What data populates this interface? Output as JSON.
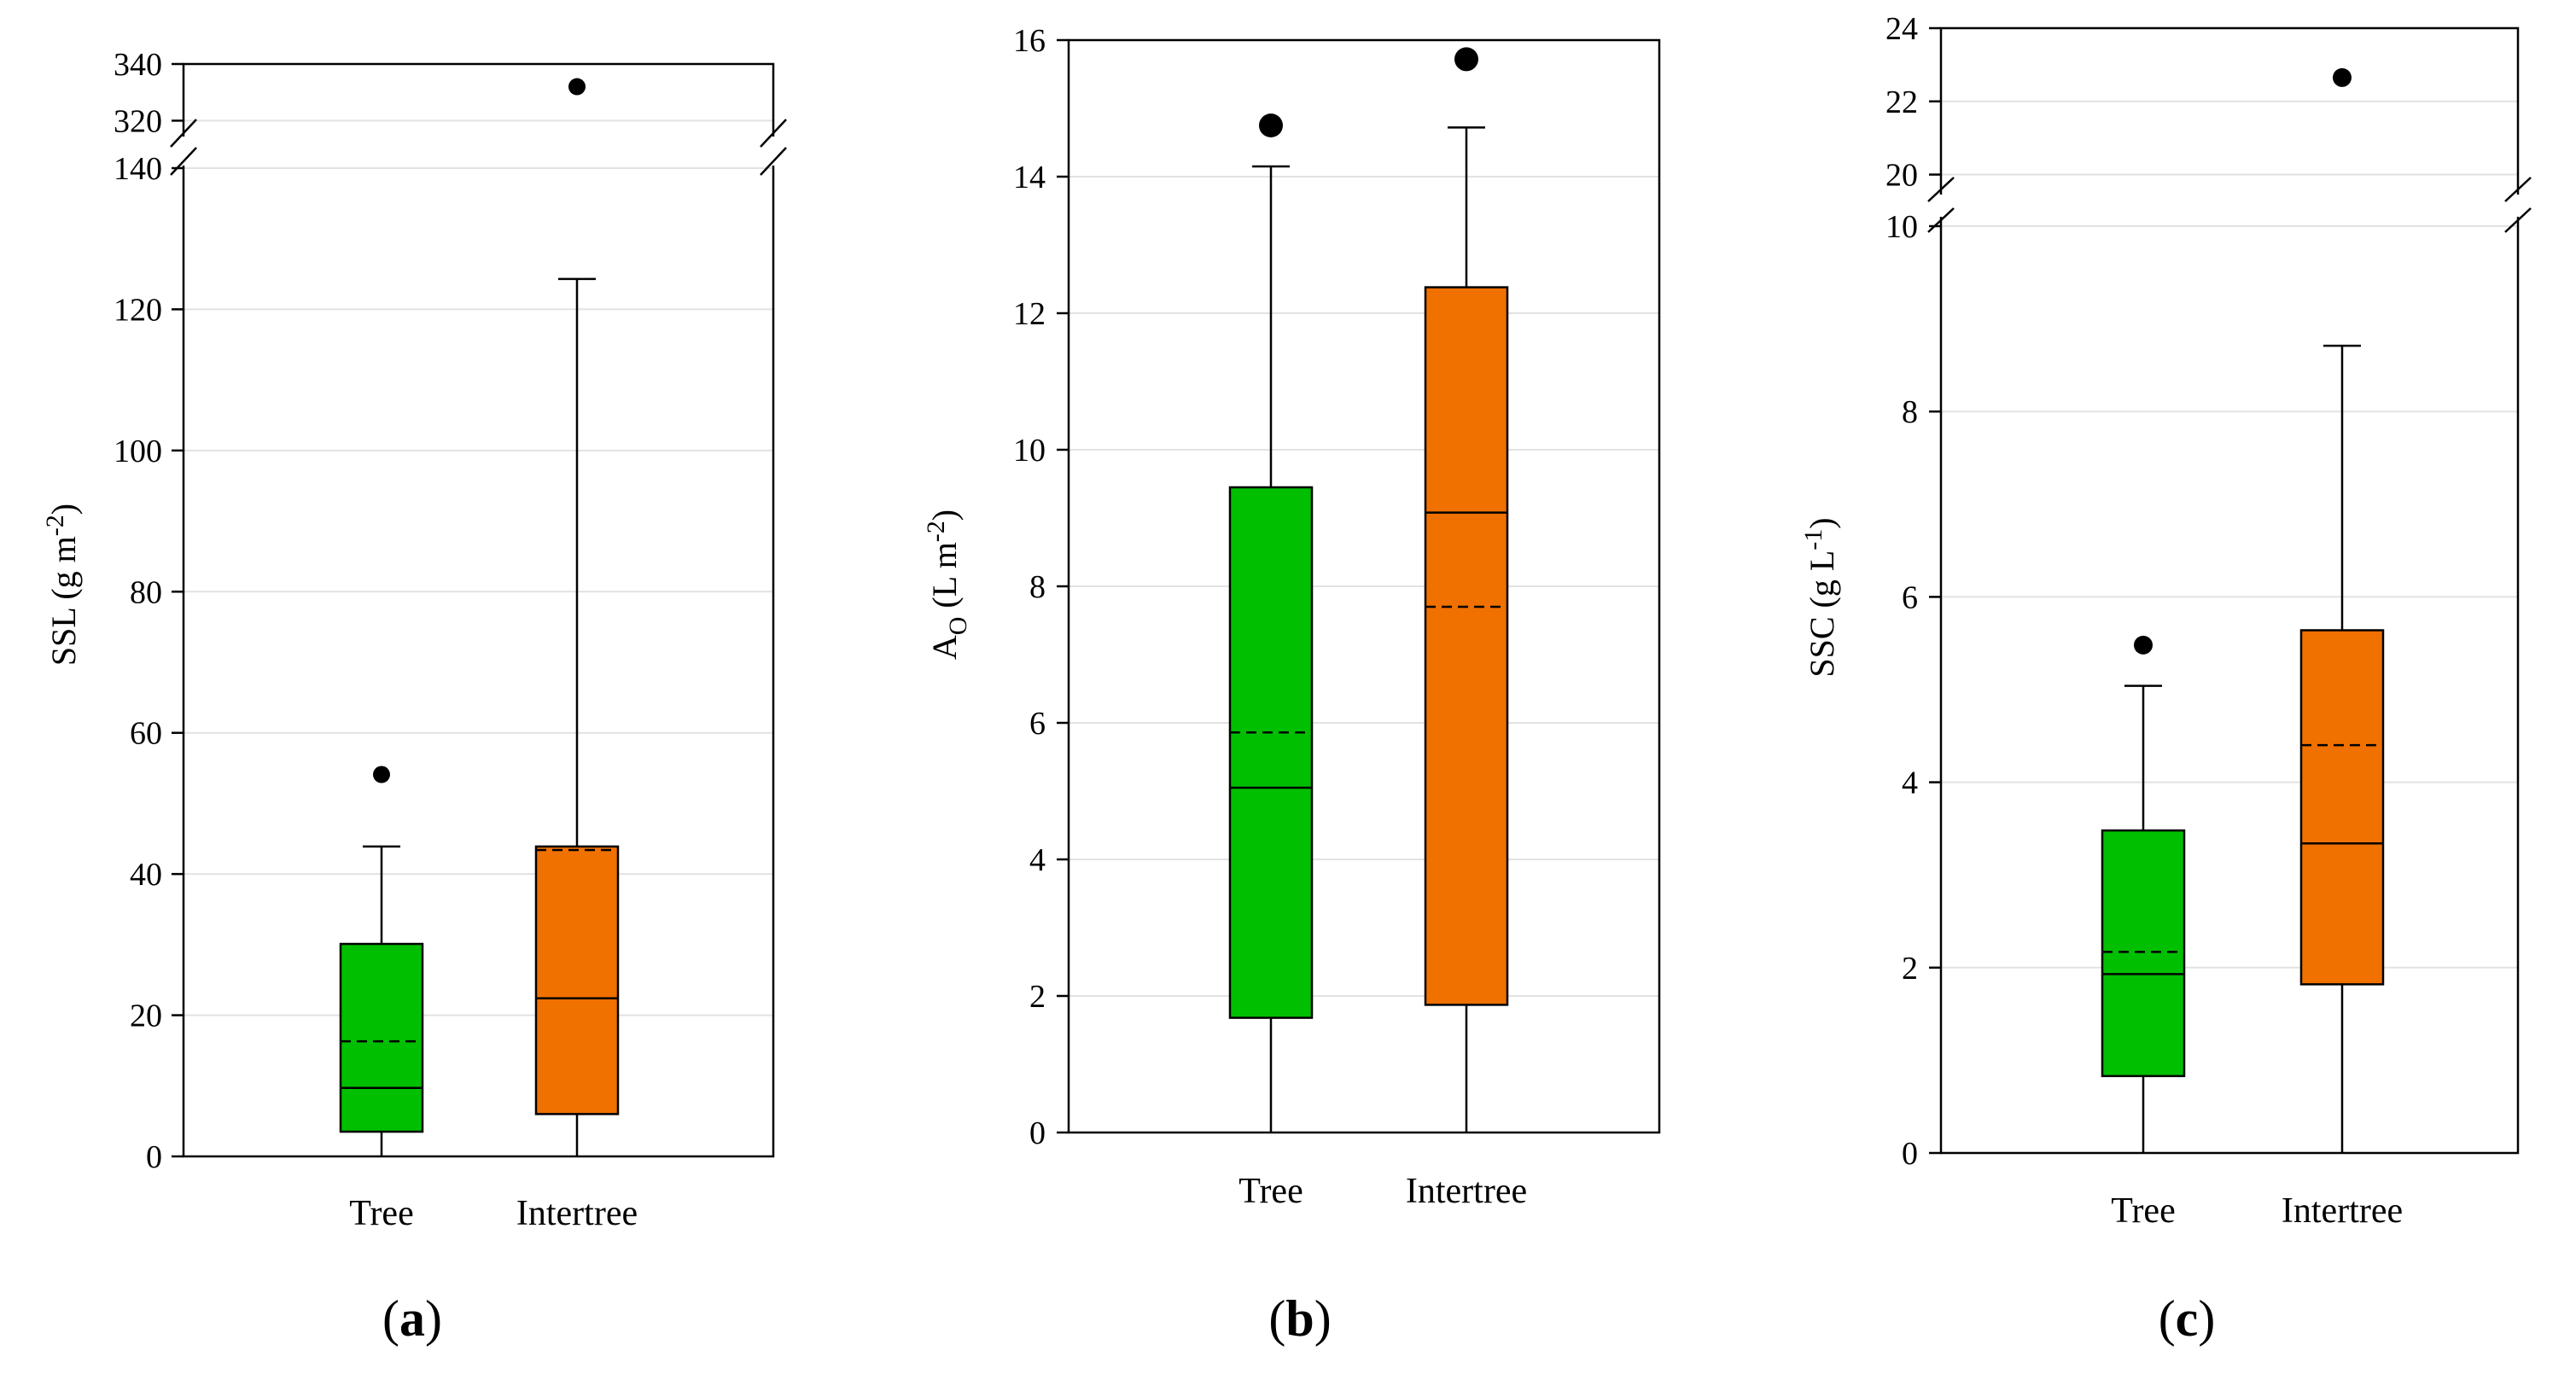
{
  "colors": {
    "tree": "#00bf00",
    "intertree": "#f07000"
  },
  "chart_data": [
    {
      "type": "box",
      "panel": "(a)",
      "panel_letter": "a",
      "ylabel": "SSL (g m",
      "ylabel_sup": "-2",
      "ylabel_end": ")",
      "categories": [
        "Tree",
        "Intertree"
      ],
      "axis_break": true,
      "ylim_lower": [
        0,
        140
      ],
      "ylim_upper": [
        315,
        340
      ],
      "yticks_lower": [
        "0",
        "20",
        "40",
        "60",
        "80",
        "100",
        "120",
        "140"
      ],
      "yticks_upper": [
        "320",
        "340"
      ],
      "boxes": [
        {
          "name": "Tree",
          "color": "tree",
          "q1": 3.5,
          "median": 9.7,
          "mean": 16.3,
          "q3": 30.1,
          "whisker_low": 0,
          "whisker_high": 43.9,
          "outliers": [
            54.1
          ]
        },
        {
          "name": "Intertree",
          "color": "intertree",
          "q1": 6.0,
          "median": 22.4,
          "mean": 43.4,
          "q3": 43.9,
          "whisker_low": 0,
          "whisker_high": 124.3,
          "outliers": [
            332
          ]
        }
      ]
    },
    {
      "type": "box",
      "panel": "(b)",
      "panel_letter": "b",
      "ylabel": "A",
      "ylabel_sub": "O",
      "ylabel_rest": " (L m",
      "ylabel_sup": "-2",
      "ylabel_end": ")",
      "categories": [
        "Tree",
        "Intertree"
      ],
      "axis_break": false,
      "ylim": [
        0,
        16
      ],
      "yticks": [
        "0",
        "2",
        "4",
        "6",
        "8",
        "10",
        "12",
        "14",
        "16"
      ],
      "boxes": [
        {
          "name": "Tree",
          "color": "tree",
          "q1": 1.68,
          "median": 5.05,
          "mean": 5.86,
          "q3": 9.45,
          "whisker_low": 0,
          "whisker_high": 14.15,
          "outliers": [
            14.75
          ]
        },
        {
          "name": "Intertree",
          "color": "intertree",
          "q1": 1.87,
          "median": 9.08,
          "mean": 7.7,
          "q3": 12.38,
          "whisker_low": 0,
          "whisker_high": 14.72,
          "outliers": [
            15.72
          ]
        }
      ]
    },
    {
      "type": "box",
      "panel": "(c)",
      "panel_letter": "c",
      "ylabel": "SSC (g L",
      "ylabel_sup": "-1",
      "ylabel_end": ")",
      "categories": [
        "Tree",
        "Intertree"
      ],
      "axis_break": true,
      "ylim_lower": [
        0,
        10
      ],
      "ylim_upper": [
        19.5,
        24
      ],
      "yticks_lower": [
        "0",
        "2",
        "4",
        "6",
        "8",
        "10"
      ],
      "yticks_upper": [
        "20",
        "22",
        "24"
      ],
      "boxes": [
        {
          "name": "Tree",
          "color": "tree",
          "q1": 0.83,
          "median": 1.93,
          "mean": 2.17,
          "q3": 3.48,
          "whisker_low": 0,
          "whisker_high": 5.04,
          "outliers": [
            5.48
          ]
        },
        {
          "name": "Intertree",
          "color": "intertree",
          "q1": 1.82,
          "median": 3.34,
          "mean": 4.4,
          "q3": 5.64,
          "whisker_low": 0,
          "whisker_high": 8.71,
          "outliers": [
            22.65
          ]
        }
      ]
    }
  ]
}
